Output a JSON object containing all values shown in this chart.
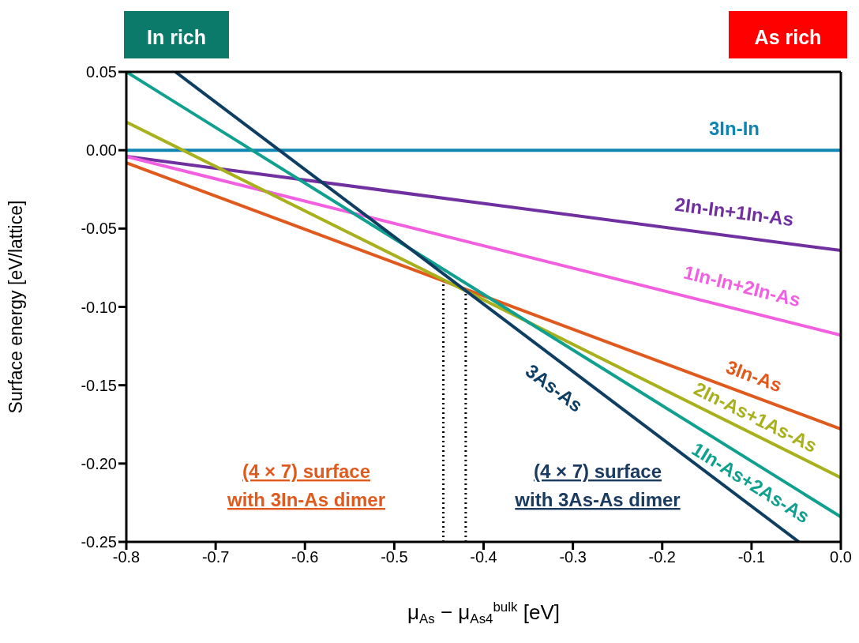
{
  "chart_data": {
    "type": "line",
    "xlabel": "μ$_{As}$ − μ$_{As4}$$^{bulk}$ [eV]",
    "ylabel": "Surface energy [eV/lattice]",
    "xlim": [
      -0.8,
      0.0
    ],
    "xticks": [
      {
        "value": -0.8,
        "label": "-0.8"
      },
      {
        "value": -0.7,
        "label": "-0.7"
      },
      {
        "value": -0.6,
        "label": "-0.6"
      },
      {
        "value": -0.5,
        "label": "-0.5"
      },
      {
        "value": -0.4,
        "label": "-0.4"
      },
      {
        "value": -0.3,
        "label": "-0.3"
      },
      {
        "value": -0.2,
        "label": "-0.2"
      },
      {
        "value": -0.1,
        "label": "-0.1"
      },
      {
        "value": 0,
        "label": "0.0"
      }
    ],
    "ylim": [
      -0.25,
      0.05
    ],
    "yticks": [
      {
        "value": -0.25,
        "label": "-0.25"
      },
      {
        "value": -0.2,
        "label": "-0.20"
      },
      {
        "value": -0.15,
        "label": "-0.15"
      },
      {
        "value": -0.1,
        "label": "-0.10"
      },
      {
        "value": -0.05,
        "label": "-0.05"
      },
      {
        "value": 0,
        "label": "0.00"
      },
      {
        "value": 0.05,
        "label": "0.05"
      }
    ],
    "marker": "none",
    "line_style": "solid",
    "series": [
      {
        "name": "3In-In",
        "color": "#0e86b4",
        "x": [
          -0.8,
          0.0
        ],
        "values": [
          0.0,
          0.0
        ]
      },
      {
        "name": "2In-In+1In-As",
        "color": "#7030a0",
        "x": [
          -0.8,
          0.0
        ],
        "values": [
          -0.004,
          -0.064
        ]
      },
      {
        "name": "1In-In+2In-As",
        "color": "#f060e0",
        "x": [
          -0.8,
          0.0
        ],
        "values": [
          -0.004,
          -0.118
        ]
      },
      {
        "name": "3In-As",
        "color": "#e05a1e",
        "x": [
          -0.8,
          0.0
        ],
        "values": [
          -0.008,
          -0.178
        ]
      },
      {
        "name": "2In-As+1As-As",
        "color": "#a8b01c",
        "x": [
          -0.8,
          0.0
        ],
        "values": [
          0.018,
          -0.209
        ]
      },
      {
        "name": "1In-As+2As-As",
        "color": "#10a090",
        "x": [
          -0.8,
          0.0
        ],
        "values": [
          0.05,
          -0.234
        ]
      },
      {
        "name": "3As-As",
        "color": "#0e3e62",
        "x": [
          -0.745,
          -0.047
        ],
        "values": [
          0.05,
          -0.25
        ]
      }
    ],
    "ref_lines": [
      {
        "axis": "x",
        "value": -0.445,
        "color": "#000000",
        "line_style": "dotted"
      },
      {
        "axis": "x",
        "value": -0.42,
        "color": "#000000",
        "line_style": "dotted"
      }
    ],
    "annotations": [
      "In rich",
      "As rich",
      "(4 × 7) surface\nwith 3In-As dimer",
      "(4 × 7) surface\nwith 3As-As dimer"
    ]
  }
}
